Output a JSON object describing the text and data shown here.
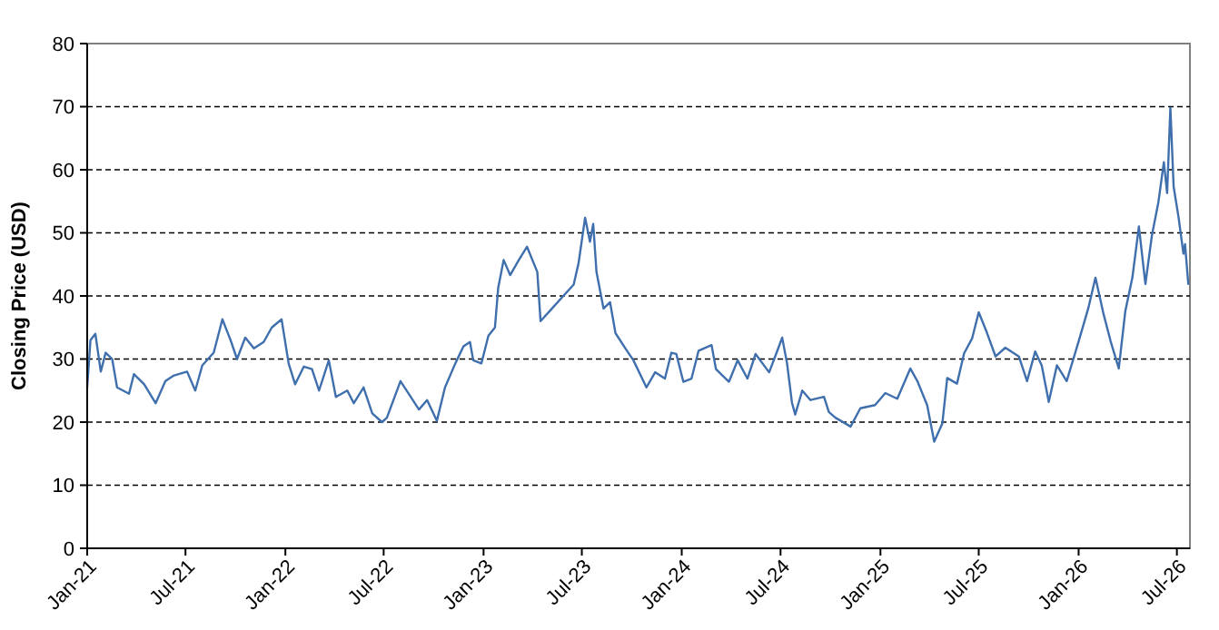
{
  "chart_data": {
    "type": "line",
    "ylabel": "Closing Price (USD)",
    "grid": "y",
    "ylim": [
      0,
      80
    ],
    "yticks": [
      0,
      10,
      20,
      30,
      40,
      50,
      60,
      70,
      80
    ],
    "xlim": [
      "2021-01-01",
      "2026-07-25"
    ],
    "xticks": [
      {
        "value": "2021-01-01",
        "label": "Jan-21"
      },
      {
        "value": "2021-07-01",
        "label": "Jul-21"
      },
      {
        "value": "2022-01-01",
        "label": "Jan-22"
      },
      {
        "value": "2022-07-01",
        "label": "Jul-22"
      },
      {
        "value": "2023-01-01",
        "label": "Jan-23"
      },
      {
        "value": "2023-07-01",
        "label": "Jul-23"
      },
      {
        "value": "2024-01-01",
        "label": "Jan-24"
      },
      {
        "value": "2024-07-01",
        "label": "Jul-24"
      },
      {
        "value": "2025-01-01",
        "label": "Jan-25"
      },
      {
        "value": "2025-07-01",
        "label": "Jul-25"
      },
      {
        "value": "2026-01-01",
        "label": "Jan-26"
      },
      {
        "value": "2026-07-01",
        "label": "Jul-26"
      }
    ],
    "x": [
      "2021-01-01",
      "2021-01-07",
      "2021-01-16",
      "2021-01-26",
      "2021-02-04",
      "2021-02-16",
      "2021-02-25",
      "2021-03-19",
      "2021-03-28",
      "2021-04-16",
      "2021-05-07",
      "2021-05-25",
      "2021-06-10",
      "2021-07-04",
      "2021-07-19",
      "2021-08-01",
      "2021-08-22",
      "2021-09-07",
      "2021-09-22",
      "2021-10-04",
      "2021-10-19",
      "2021-11-04",
      "2021-11-22",
      "2021-12-07",
      "2021-12-25",
      "2022-01-07",
      "2022-01-19",
      "2022-02-04",
      "2022-02-19",
      "2022-03-04",
      "2022-03-22",
      "2022-04-04",
      "2022-04-25",
      "2022-05-07",
      "2022-05-25",
      "2022-06-10",
      "2022-06-28",
      "2022-07-07",
      "2022-08-01",
      "2022-08-16",
      "2022-09-04",
      "2022-09-19",
      "2022-10-07",
      "2022-10-22",
      "2022-11-10",
      "2022-11-25",
      "2022-12-07",
      "2022-12-13",
      "2022-12-28",
      "2023-01-10",
      "2023-01-22",
      "2023-01-28",
      "2023-02-07",
      "2023-02-19",
      "2023-03-07",
      "2023-03-22",
      "2023-04-10",
      "2023-04-16",
      "2023-05-07",
      "2023-05-28",
      "2023-06-16",
      "2023-06-25",
      "2023-07-07",
      "2023-07-16",
      "2023-07-22",
      "2023-07-28",
      "2023-08-10",
      "2023-08-22",
      "2023-09-01",
      "2023-09-19",
      "2023-10-04",
      "2023-10-28",
      "2023-11-13",
      "2023-12-01",
      "2023-12-13",
      "2023-12-22",
      "2024-01-04",
      "2024-01-19",
      "2024-02-01",
      "2024-02-25",
      "2024-03-04",
      "2024-03-28",
      "2024-04-13",
      "2024-05-01",
      "2024-05-16",
      "2024-06-10",
      "2024-06-25",
      "2024-07-04",
      "2024-07-13",
      "2024-07-22",
      "2024-07-28",
      "2024-08-10",
      "2024-08-25",
      "2024-09-19",
      "2024-09-28",
      "2024-10-10",
      "2024-11-07",
      "2024-11-25",
      "2024-12-22",
      "2025-01-10",
      "2025-02-01",
      "2025-02-25",
      "2025-03-10",
      "2025-03-28",
      "2025-04-10",
      "2025-04-25",
      "2025-05-04",
      "2025-05-22",
      "2025-06-04",
      "2025-06-19",
      "2025-07-01",
      "2025-07-16",
      "2025-08-01",
      "2025-08-19",
      "2025-09-13",
      "2025-09-28",
      "2025-10-13",
      "2025-10-25",
      "2025-11-07",
      "2025-11-22",
      "2025-12-10",
      "2026-01-01",
      "2026-01-19",
      "2026-02-01",
      "2026-02-16",
      "2026-03-01",
      "2026-03-16",
      "2026-03-28",
      "2026-04-10",
      "2026-04-22",
      "2026-05-04",
      "2026-05-16",
      "2026-05-28",
      "2026-06-07",
      "2026-06-13",
      "2026-06-19",
      "2026-06-25",
      "2026-07-04",
      "2026-07-13",
      "2026-07-16",
      "2026-07-22"
    ],
    "series": [
      {
        "color": "#3f6fad",
        "values": [
          25.5,
          33,
          34,
          28,
          31,
          30,
          25.5,
          24.5,
          27.6,
          26,
          23,
          26.5,
          27.4,
          28,
          25,
          29,
          31,
          36.3,
          33,
          30,
          33.4,
          31.7,
          32.7,
          35,
          36.3,
          29.3,
          26,
          28.8,
          28.4,
          25,
          29.8,
          24,
          25,
          23,
          25.5,
          21.4,
          20,
          20.7,
          26.5,
          24.5,
          22,
          23.5,
          20.2,
          25.5,
          29.3,
          32,
          32.7,
          29.8,
          29.3,
          33.7,
          35,
          41.3,
          45.7,
          43.3,
          45.7,
          47.8,
          43.8,
          36,
          38,
          40,
          41.8,
          45.2,
          52.4,
          48.6,
          51.4,
          43.8,
          38,
          39,
          34.1,
          31.7,
          29.8,
          25.5,
          27.9,
          26.9,
          31,
          30.8,
          26.4,
          26.9,
          31.3,
          32.2,
          28.4,
          26.4,
          29.8,
          26.9,
          30.8,
          27.9,
          31.3,
          33.4,
          29.3,
          23.1,
          21.2,
          25,
          23.5,
          24,
          21.6,
          20.7,
          19.3,
          22.2,
          22.7,
          24.6,
          23.7,
          28.5,
          26.5,
          22.7,
          16.9,
          19.8,
          27,
          26.1,
          30.9,
          33.3,
          37.4,
          34.2,
          30.4,
          31.8,
          30.4,
          26.5,
          31.2,
          29,
          23.2,
          29,
          26.5,
          32.8,
          38.1,
          42.9,
          37.1,
          32.8,
          28.5,
          37.6,
          42.9,
          51,
          41.9,
          49.6,
          54.9,
          61.2,
          56.3,
          69.8,
          57.3,
          52.5,
          46.7,
          48.2,
          41.9
        ]
      }
    ]
  }
}
